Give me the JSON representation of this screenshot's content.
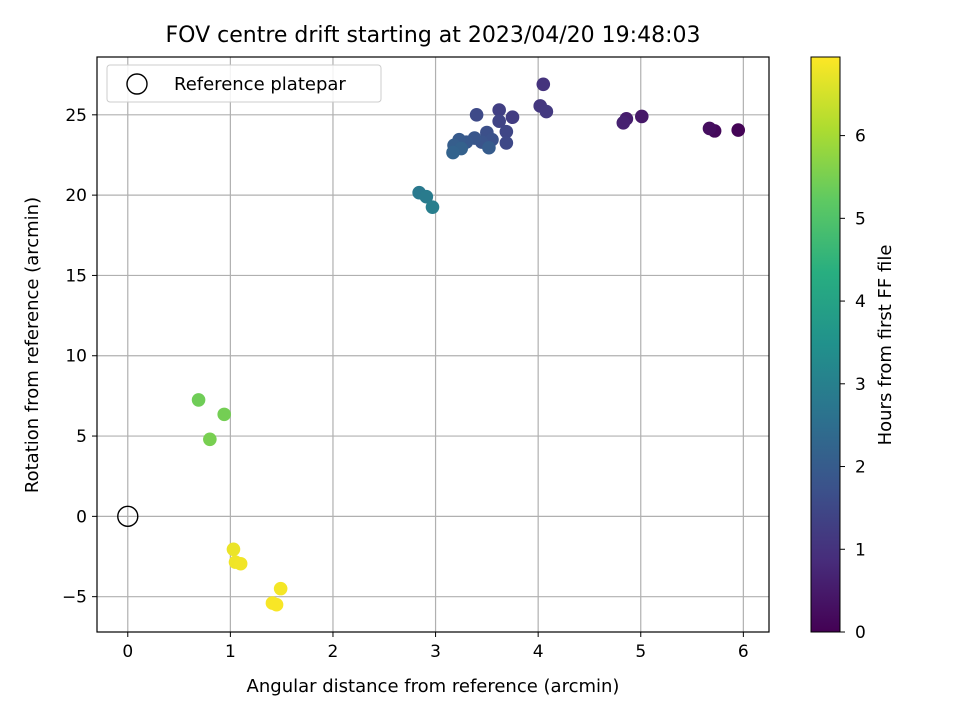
{
  "chart_data": {
    "type": "scatter",
    "title": "FOV centre drift starting at 2023/04/20 19:48:03",
    "xlabel": "Angular distance from reference (arcmin)",
    "ylabel": "Rotation from reference (arcmin)",
    "xlim": [
      -0.3,
      6.25
    ],
    "ylim": [
      -7.2,
      28.6
    ],
    "x_ticks": [
      0,
      1,
      2,
      3,
      4,
      5,
      6
    ],
    "y_ticks": [
      -5,
      0,
      5,
      10,
      15,
      20,
      25
    ],
    "grid": true,
    "legend": {
      "placement": "top-left",
      "entries": [
        "Reference platepar"
      ]
    },
    "reference_point": {
      "x": 0,
      "y": 0,
      "label": "Reference platepar"
    },
    "colorbar": {
      "label": "Hours from first FF file",
      "min": 0,
      "max": 6.95,
      "ticks": [
        0,
        1,
        2,
        3,
        4,
        5,
        6
      ],
      "colormap": "viridis"
    },
    "points": [
      {
        "x": 5.95,
        "y": 24.05,
        "c": 0.05
      },
      {
        "x": 5.72,
        "y": 24.0,
        "c": 0.15
      },
      {
        "x": 5.67,
        "y": 24.15,
        "c": 0.25
      },
      {
        "x": 5.01,
        "y": 24.9,
        "c": 0.45
      },
      {
        "x": 4.86,
        "y": 24.75,
        "c": 0.55
      },
      {
        "x": 4.83,
        "y": 24.5,
        "c": 0.65
      },
      {
        "x": 4.05,
        "y": 26.9,
        "c": 1.0
      },
      {
        "x": 4.02,
        "y": 25.55,
        "c": 1.1
      },
      {
        "x": 4.08,
        "y": 25.2,
        "c": 1.15
      },
      {
        "x": 3.75,
        "y": 24.85,
        "c": 1.25
      },
      {
        "x": 3.62,
        "y": 25.3,
        "c": 1.3
      },
      {
        "x": 3.62,
        "y": 24.6,
        "c": 1.4
      },
      {
        "x": 3.69,
        "y": 23.95,
        "c": 1.45
      },
      {
        "x": 3.69,
        "y": 23.25,
        "c": 1.5
      },
      {
        "x": 3.4,
        "y": 25.0,
        "c": 1.55
      },
      {
        "x": 3.5,
        "y": 23.9,
        "c": 1.7
      },
      {
        "x": 3.55,
        "y": 23.45,
        "c": 1.75
      },
      {
        "x": 3.45,
        "y": 23.3,
        "c": 1.8
      },
      {
        "x": 3.38,
        "y": 23.55,
        "c": 1.85
      },
      {
        "x": 3.3,
        "y": 23.3,
        "c": 1.9
      },
      {
        "x": 3.23,
        "y": 23.45,
        "c": 1.95
      },
      {
        "x": 3.52,
        "y": 22.95,
        "c": 2.0
      },
      {
        "x": 3.18,
        "y": 23.1,
        "c": 2.05
      },
      {
        "x": 3.25,
        "y": 22.9,
        "c": 2.15
      },
      {
        "x": 3.17,
        "y": 22.65,
        "c": 2.2
      },
      {
        "x": 2.84,
        "y": 20.15,
        "c": 2.8
      },
      {
        "x": 2.91,
        "y": 19.9,
        "c": 2.85
      },
      {
        "x": 2.97,
        "y": 19.25,
        "c": 2.95
      },
      {
        "x": 0.69,
        "y": 7.25,
        "c": 5.4
      },
      {
        "x": 0.94,
        "y": 6.35,
        "c": 5.45
      },
      {
        "x": 0.8,
        "y": 4.8,
        "c": 5.5
      },
      {
        "x": 1.03,
        "y": -2.05,
        "c": 6.75
      },
      {
        "x": 1.05,
        "y": -2.85,
        "c": 6.8
      },
      {
        "x": 1.1,
        "y": -2.95,
        "c": 6.82
      },
      {
        "x": 1.49,
        "y": -4.5,
        "c": 6.85
      },
      {
        "x": 1.41,
        "y": -5.4,
        "c": 6.88
      },
      {
        "x": 1.45,
        "y": -5.5,
        "c": 6.9
      }
    ]
  }
}
